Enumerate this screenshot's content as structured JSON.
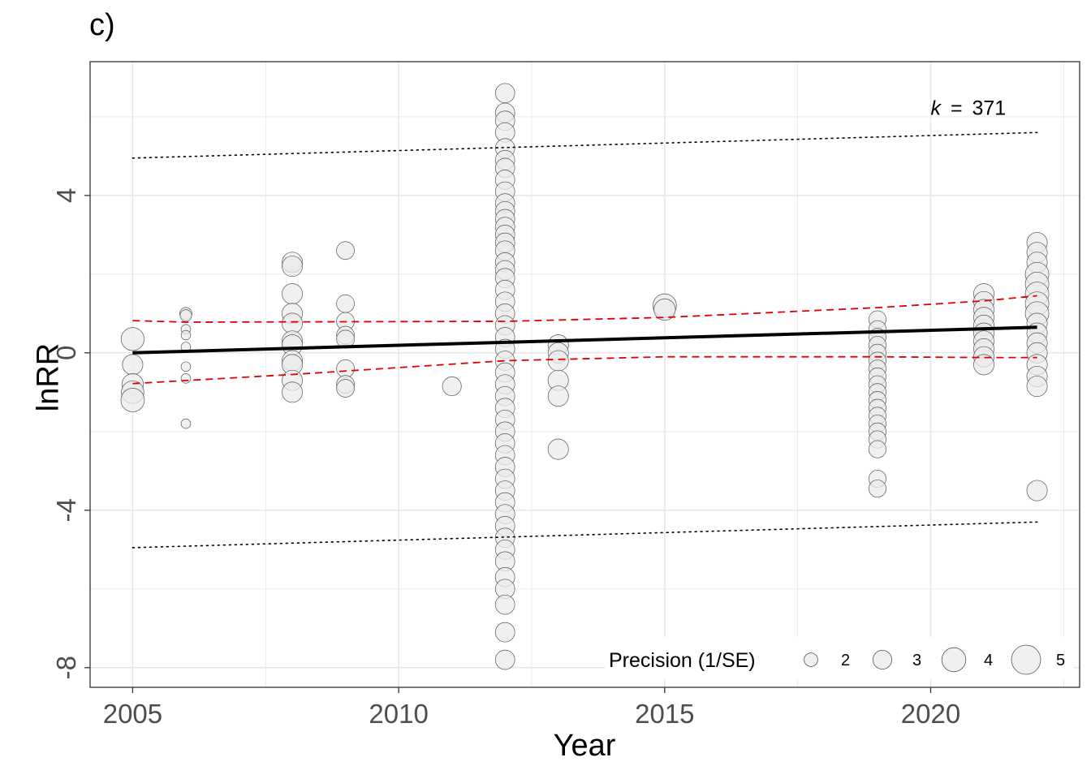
{
  "chart_data": {
    "type": "scatter",
    "panel_tag": "c)",
    "title": "",
    "xlabel": "Year",
    "ylabel": "lnRR",
    "xlim": [
      2004.2,
      2022.8
    ],
    "ylim": [
      -8.5,
      7.4
    ],
    "x_ticks": [
      2005,
      2010,
      2015,
      2020
    ],
    "x_tick_labels": [
      "2005",
      "2010",
      "2015",
      "2020"
    ],
    "y_ticks": [
      -8,
      -4,
      0,
      4
    ],
    "y_tick_labels": [
      "-8",
      "-4",
      "0",
      "4"
    ],
    "grid": true,
    "annotation": {
      "k_symbol": "k",
      "equals": "=",
      "value": "371"
    },
    "legend": {
      "title": "Precision (1/SE)",
      "placement": "bottom-right",
      "entries": [
        {
          "label": "2",
          "precision": 2
        },
        {
          "label": "3",
          "precision": 3
        },
        {
          "label": "4",
          "precision": 4
        },
        {
          "label": "5",
          "precision": 5
        }
      ]
    },
    "colors": {
      "point_fill": "#ebebeb",
      "point_stroke": "#555555",
      "fit_line": "#000000",
      "confidence_interval": "#e00000",
      "prediction_interval": "#000000",
      "grid": "#e6e6e6"
    },
    "fit": {
      "x": [
        2005,
        2022
      ],
      "y": [
        0.0,
        0.65
      ]
    },
    "ci_upper": {
      "x": [
        2005,
        2006,
        2012,
        2015,
        2019,
        2021,
        2022
      ],
      "y": [
        0.82,
        0.78,
        0.8,
        0.9,
        1.15,
        1.32,
        1.45
      ]
    },
    "ci_lower": {
      "x": [
        2005,
        2008,
        2012,
        2015,
        2019,
        2021,
        2022
      ],
      "y": [
        -0.78,
        -0.55,
        -0.2,
        -0.1,
        -0.1,
        -0.12,
        -0.12
      ]
    },
    "pi_upper": {
      "x": [
        2005,
        2022
      ],
      "y": [
        4.95,
        5.6
      ]
    },
    "pi_lower": {
      "x": [
        2005,
        2022
      ],
      "y": [
        -4.95,
        -4.3
      ]
    },
    "points": [
      {
        "x": 2005,
        "y": 0.35,
        "p": 3.5
      },
      {
        "x": 2005,
        "y": -0.3,
        "p": 3.0
      },
      {
        "x": 2005,
        "y": -0.8,
        "p": 3.2
      },
      {
        "x": 2005,
        "y": -1.0,
        "p": 3.4
      },
      {
        "x": 2005,
        "y": -1.2,
        "p": 3.6
      },
      {
        "x": 2006,
        "y": 1.0,
        "p": 1.4
      },
      {
        "x": 2006,
        "y": 0.95,
        "p": 1.3
      },
      {
        "x": 2006,
        "y": 0.6,
        "p": 0.9
      },
      {
        "x": 2006,
        "y": 0.45,
        "p": 0.9
      },
      {
        "x": 2006,
        "y": 0.15,
        "p": 0.9
      },
      {
        "x": 2006,
        "y": -0.35,
        "p": 0.9
      },
      {
        "x": 2006,
        "y": -0.65,
        "p": 0.9
      },
      {
        "x": 2006,
        "y": -1.8,
        "p": 0.9
      },
      {
        "x": 2008,
        "y": 2.3,
        "p": 3.0
      },
      {
        "x": 2008,
        "y": 2.2,
        "p": 3.0
      },
      {
        "x": 2008,
        "y": 1.5,
        "p": 3.0
      },
      {
        "x": 2008,
        "y": 1.0,
        "p": 3.0
      },
      {
        "x": 2008,
        "y": 0.75,
        "p": 3.0
      },
      {
        "x": 2008,
        "y": 0.3,
        "p": 3.0
      },
      {
        "x": 2008,
        "y": 0.2,
        "p": 3.0
      },
      {
        "x": 2008,
        "y": -0.2,
        "p": 3.0
      },
      {
        "x": 2008,
        "y": -0.3,
        "p": 3.0
      },
      {
        "x": 2008,
        "y": -0.7,
        "p": 3.0
      },
      {
        "x": 2008,
        "y": -1.0,
        "p": 3.0
      },
      {
        "x": 2009,
        "y": 2.6,
        "p": 2.5
      },
      {
        "x": 2009,
        "y": 1.25,
        "p": 2.5
      },
      {
        "x": 2009,
        "y": 0.8,
        "p": 2.5
      },
      {
        "x": 2009,
        "y": 0.45,
        "p": 2.5
      },
      {
        "x": 2009,
        "y": 0.35,
        "p": 2.5
      },
      {
        "x": 2009,
        "y": -0.4,
        "p": 2.5
      },
      {
        "x": 2009,
        "y": -0.8,
        "p": 2.5
      },
      {
        "x": 2009,
        "y": -0.9,
        "p": 2.5
      },
      {
        "x": 2011,
        "y": -0.85,
        "p": 2.7
      },
      {
        "x": 2012,
        "y": 6.6,
        "p": 2.8
      },
      {
        "x": 2012,
        "y": 6.1,
        "p": 2.8
      },
      {
        "x": 2012,
        "y": 5.9,
        "p": 2.8
      },
      {
        "x": 2012,
        "y": 5.6,
        "p": 2.8
      },
      {
        "x": 2012,
        "y": 5.2,
        "p": 2.8
      },
      {
        "x": 2012,
        "y": 4.9,
        "p": 2.8
      },
      {
        "x": 2012,
        "y": 4.7,
        "p": 2.8
      },
      {
        "x": 2012,
        "y": 4.4,
        "p": 2.8
      },
      {
        "x": 2012,
        "y": 4.1,
        "p": 2.8
      },
      {
        "x": 2012,
        "y": 3.8,
        "p": 2.8
      },
      {
        "x": 2012,
        "y": 3.6,
        "p": 2.8
      },
      {
        "x": 2012,
        "y": 3.4,
        "p": 2.8
      },
      {
        "x": 2012,
        "y": 3.2,
        "p": 2.8
      },
      {
        "x": 2012,
        "y": 3.0,
        "p": 2.8
      },
      {
        "x": 2012,
        "y": 2.8,
        "p": 2.8
      },
      {
        "x": 2012,
        "y": 2.6,
        "p": 2.8
      },
      {
        "x": 2012,
        "y": 2.3,
        "p": 2.8
      },
      {
        "x": 2012,
        "y": 2.1,
        "p": 2.8
      },
      {
        "x": 2012,
        "y": 1.9,
        "p": 2.8
      },
      {
        "x": 2012,
        "y": 1.6,
        "p": 2.8
      },
      {
        "x": 2012,
        "y": 1.3,
        "p": 2.8
      },
      {
        "x": 2012,
        "y": 1.0,
        "p": 2.8
      },
      {
        "x": 2012,
        "y": 0.7,
        "p": 2.8
      },
      {
        "x": 2012,
        "y": 0.4,
        "p": 2.8
      },
      {
        "x": 2012,
        "y": 0.1,
        "p": 2.8
      },
      {
        "x": 2012,
        "y": -0.2,
        "p": 2.8
      },
      {
        "x": 2012,
        "y": -0.5,
        "p": 2.8
      },
      {
        "x": 2012,
        "y": -0.8,
        "p": 2.8
      },
      {
        "x": 2012,
        "y": -1.1,
        "p": 2.8
      },
      {
        "x": 2012,
        "y": -1.4,
        "p": 2.8
      },
      {
        "x": 2012,
        "y": -1.7,
        "p": 2.8
      },
      {
        "x": 2012,
        "y": -2.0,
        "p": 2.8
      },
      {
        "x": 2012,
        "y": -2.3,
        "p": 2.8
      },
      {
        "x": 2012,
        "y": -2.6,
        "p": 2.8
      },
      {
        "x": 2012,
        "y": -2.9,
        "p": 2.8
      },
      {
        "x": 2012,
        "y": -3.2,
        "p": 2.8
      },
      {
        "x": 2012,
        "y": -3.5,
        "p": 2.8
      },
      {
        "x": 2012,
        "y": -3.8,
        "p": 2.8
      },
      {
        "x": 2012,
        "y": -4.1,
        "p": 2.8
      },
      {
        "x": 2012,
        "y": -4.4,
        "p": 2.8
      },
      {
        "x": 2012,
        "y": -4.7,
        "p": 2.8
      },
      {
        "x": 2012,
        "y": -5.0,
        "p": 2.8
      },
      {
        "x": 2012,
        "y": -5.3,
        "p": 2.8
      },
      {
        "x": 2012,
        "y": -5.7,
        "p": 2.8
      },
      {
        "x": 2012,
        "y": -6.0,
        "p": 2.8
      },
      {
        "x": 2012,
        "y": -6.4,
        "p": 2.8
      },
      {
        "x": 2012,
        "y": -7.1,
        "p": 2.8
      },
      {
        "x": 2012,
        "y": -7.8,
        "p": 2.8
      },
      {
        "x": 2013,
        "y": 0.2,
        "p": 3.0
      },
      {
        "x": 2013,
        "y": 0.0,
        "p": 3.0
      },
      {
        "x": 2013,
        "y": -0.2,
        "p": 3.0
      },
      {
        "x": 2013,
        "y": -0.7,
        "p": 3.0
      },
      {
        "x": 2013,
        "y": -1.1,
        "p": 3.0
      },
      {
        "x": 2013,
        "y": -2.45,
        "p": 3.0
      },
      {
        "x": 2015,
        "y": 1.2,
        "p": 3.6
      },
      {
        "x": 2015,
        "y": 1.1,
        "p": 3.2
      },
      {
        "x": 2019,
        "y": 0.85,
        "p": 2.4
      },
      {
        "x": 2019,
        "y": 0.6,
        "p": 2.4
      },
      {
        "x": 2019,
        "y": 0.4,
        "p": 2.4
      },
      {
        "x": 2019,
        "y": 0.2,
        "p": 2.4
      },
      {
        "x": 2019,
        "y": 0.0,
        "p": 2.4
      },
      {
        "x": 2019,
        "y": -0.2,
        "p": 2.4
      },
      {
        "x": 2019,
        "y": -0.4,
        "p": 2.4
      },
      {
        "x": 2019,
        "y": -0.6,
        "p": 2.4
      },
      {
        "x": 2019,
        "y": -0.8,
        "p": 2.4
      },
      {
        "x": 2019,
        "y": -1.0,
        "p": 2.4
      },
      {
        "x": 2019,
        "y": -1.2,
        "p": 2.4
      },
      {
        "x": 2019,
        "y": -1.4,
        "p": 2.4
      },
      {
        "x": 2019,
        "y": -1.6,
        "p": 2.4
      },
      {
        "x": 2019,
        "y": -1.8,
        "p": 2.4
      },
      {
        "x": 2019,
        "y": -2.0,
        "p": 2.4
      },
      {
        "x": 2019,
        "y": -2.2,
        "p": 2.4
      },
      {
        "x": 2019,
        "y": -2.45,
        "p": 2.4
      },
      {
        "x": 2019,
        "y": -3.2,
        "p": 2.4
      },
      {
        "x": 2019,
        "y": -3.45,
        "p": 2.4
      },
      {
        "x": 2021,
        "y": 1.5,
        "p": 3.0
      },
      {
        "x": 2021,
        "y": 1.3,
        "p": 3.0
      },
      {
        "x": 2021,
        "y": 1.1,
        "p": 3.0
      },
      {
        "x": 2021,
        "y": 0.9,
        "p": 3.0
      },
      {
        "x": 2021,
        "y": 0.7,
        "p": 3.0
      },
      {
        "x": 2021,
        "y": 0.5,
        "p": 3.0
      },
      {
        "x": 2021,
        "y": 0.3,
        "p": 3.0
      },
      {
        "x": 2021,
        "y": 0.1,
        "p": 3.0
      },
      {
        "x": 2021,
        "y": -0.1,
        "p": 3.0
      },
      {
        "x": 2021,
        "y": -0.3,
        "p": 3.0
      },
      {
        "x": 2022,
        "y": 2.8,
        "p": 3.0
      },
      {
        "x": 2022,
        "y": 2.55,
        "p": 3.0
      },
      {
        "x": 2022,
        "y": 2.3,
        "p": 3.0
      },
      {
        "x": 2022,
        "y": 2.0,
        "p": 3.6
      },
      {
        "x": 2022,
        "y": 1.75,
        "p": 3.6
      },
      {
        "x": 2022,
        "y": 1.5,
        "p": 3.6
      },
      {
        "x": 2022,
        "y": 1.25,
        "p": 3.6
      },
      {
        "x": 2022,
        "y": 1.0,
        "p": 3.6
      },
      {
        "x": 2022,
        "y": 0.75,
        "p": 3.0
      },
      {
        "x": 2022,
        "y": 0.5,
        "p": 3.0
      },
      {
        "x": 2022,
        "y": 0.25,
        "p": 3.0
      },
      {
        "x": 2022,
        "y": 0.0,
        "p": 3.0
      },
      {
        "x": 2022,
        "y": -0.3,
        "p": 3.0
      },
      {
        "x": 2022,
        "y": -0.6,
        "p": 3.0
      },
      {
        "x": 2022,
        "y": -0.85,
        "p": 3.0
      },
      {
        "x": 2022,
        "y": -3.5,
        "p": 3.0
      }
    ]
  }
}
